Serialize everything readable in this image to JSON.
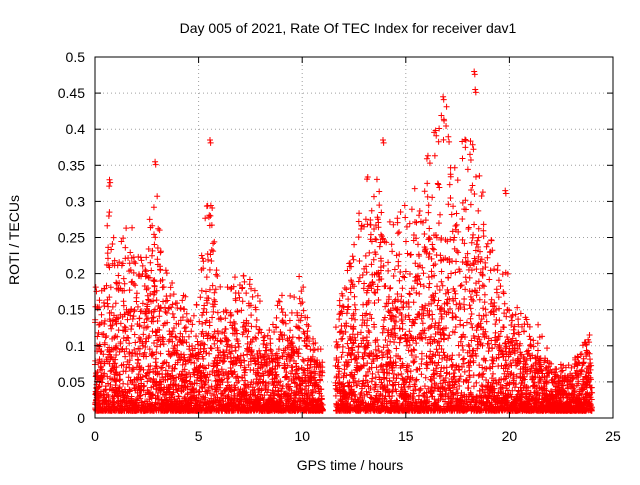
{
  "chart_data": {
    "type": "scatter",
    "title": "Day 005 of 2021, Rate Of TEC Index for receiver dav1",
    "xlabel": "GPS time / hours",
    "ylabel": "ROTI / TECUs",
    "xlim": [
      0,
      25
    ],
    "ylim": [
      0,
      0.5
    ],
    "x_ticks": [
      0,
      5,
      10,
      15,
      20,
      25
    ],
    "x_tick_labels": [
      "0",
      "5",
      "10",
      "15",
      "20",
      "25"
    ],
    "y_ticks": [
      0,
      0.05,
      0.1,
      0.15,
      0.2,
      0.25,
      0.3,
      0.35,
      0.4,
      0.45,
      0.5
    ],
    "y_tick_labels": [
      "0",
      "0.05",
      "0.1",
      "0.15",
      "0.2",
      "0.25",
      "0.3",
      "0.35",
      "0.4",
      "0.45",
      "0.5"
    ],
    "grid": true,
    "marker": "+",
    "marker_color": "#ff0000",
    "data_gap_hours": [
      11.0,
      11.6
    ],
    "envelope": {
      "x": [
        0,
        0.3,
        0.7,
        1.0,
        1.5,
        2.0,
        2.5,
        3.0,
        3.5,
        4.0,
        4.5,
        5.0,
        5.5,
        6.0,
        6.5,
        7.0,
        7.5,
        8.0,
        8.5,
        9.0,
        9.5,
        10.0,
        10.5,
        11.0,
        11.6,
        12.0,
        12.5,
        13.0,
        13.5,
        14.0,
        14.5,
        15.0,
        15.5,
        16.0,
        16.5,
        17.0,
        17.5,
        18.0,
        18.5,
        19.0,
        19.5,
        20.0,
        20.5,
        21.0,
        21.5,
        22.0,
        22.5,
        23.0,
        23.5,
        24.0
      ],
      "y_max": [
        0.2,
        0.17,
        0.33,
        0.22,
        0.29,
        0.25,
        0.26,
        0.35,
        0.2,
        0.18,
        0.17,
        0.16,
        0.38,
        0.2,
        0.18,
        0.24,
        0.2,
        0.16,
        0.13,
        0.19,
        0.17,
        0.23,
        0.12,
        0.1,
        0.14,
        0.21,
        0.26,
        0.35,
        0.38,
        0.29,
        0.27,
        0.33,
        0.32,
        0.36,
        0.41,
        0.44,
        0.37,
        0.48,
        0.36,
        0.31,
        0.21,
        0.2,
        0.16,
        0.14,
        0.13,
        0.09,
        0.08,
        0.08,
        0.11,
        0.13
      ],
      "y_min": 0.01
    },
    "notable_peaks": [
      {
        "x": 0.7,
        "y": 0.33
      },
      {
        "x": 2.9,
        "y": 0.355
      },
      {
        "x": 5.55,
        "y": 0.385
      },
      {
        "x": 13.9,
        "y": 0.385
      },
      {
        "x": 16.8,
        "y": 0.445
      },
      {
        "x": 18.3,
        "y": 0.48
      },
      {
        "x": 18.35,
        "y": 0.455
      },
      {
        "x": 19.8,
        "y": 0.315
      }
    ]
  }
}
